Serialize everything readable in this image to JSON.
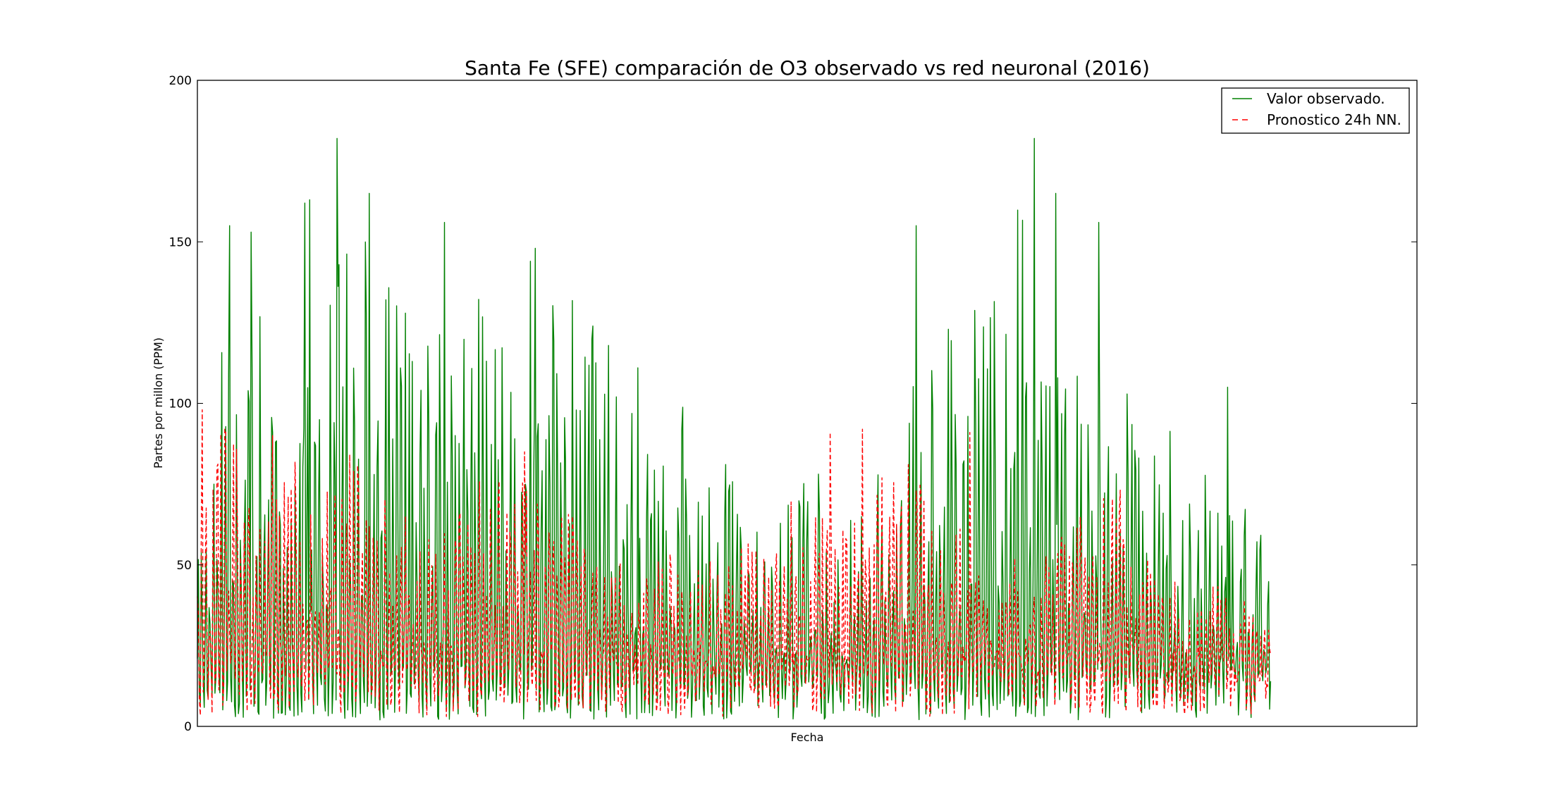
{
  "chart_data": {
    "type": "line",
    "title": "Santa Fe (SFE) comparación de O3 observado vs red neuronal (2016)",
    "xlabel": "Fecha",
    "ylabel": "Partes por millon (PPM)",
    "ylim": [
      0,
      200
    ],
    "yticks": [
      "0",
      "50",
      "100",
      "150",
      "200"
    ],
    "grid": false,
    "legend": {
      "placement": "top-right"
    },
    "x_extent_fraction": 0.88,
    "samples_per_series": 1100,
    "series": [
      {
        "name": "Valor observado.",
        "color": "#008000",
        "style": "solid",
        "baseline": 2,
        "envelope": [
          [
            0.0,
            60
          ],
          [
            0.02,
            155
          ],
          [
            0.05,
            140
          ],
          [
            0.09,
            85
          ],
          [
            0.13,
            160
          ],
          [
            0.16,
            150
          ],
          [
            0.18,
            135
          ],
          [
            0.22,
            120
          ],
          [
            0.25,
            140
          ],
          [
            0.3,
            115
          ],
          [
            0.35,
            145
          ],
          [
            0.4,
            105
          ],
          [
            0.45,
            110
          ],
          [
            0.48,
            90
          ],
          [
            0.52,
            65
          ],
          [
            0.57,
            85
          ],
          [
            0.61,
            65
          ],
          [
            0.63,
            80
          ],
          [
            0.66,
            95
          ],
          [
            0.68,
            150
          ],
          [
            0.71,
            120
          ],
          [
            0.74,
            140
          ],
          [
            0.77,
            165
          ],
          [
            0.8,
            125
          ],
          [
            0.84,
            130
          ],
          [
            0.87,
            100
          ],
          [
            0.9,
            95
          ],
          [
            0.93,
            80
          ],
          [
            0.96,
            75
          ],
          [
            1.0,
            70
          ]
        ],
        "spikes": [
          [
            0.03,
            155
          ],
          [
            0.05,
            153
          ],
          [
            0.1,
            162
          ],
          [
            0.105,
            163
          ],
          [
            0.13,
            182
          ],
          [
            0.16,
            165
          ],
          [
            0.23,
            156
          ],
          [
            0.31,
            144
          ],
          [
            0.315,
            148
          ],
          [
            0.41,
            111
          ],
          [
            0.67,
            155
          ],
          [
            0.78,
            182
          ],
          [
            0.8,
            165
          ],
          [
            0.84,
            156
          ],
          [
            0.96,
            105
          ]
        ]
      },
      {
        "name": "Pronostico 24h NN.",
        "color": "#ff0000",
        "style": "dashed",
        "baseline": 3,
        "envelope": [
          [
            0.0,
            60
          ],
          [
            0.02,
            95
          ],
          [
            0.05,
            80
          ],
          [
            0.08,
            85
          ],
          [
            0.12,
            75
          ],
          [
            0.14,
            85
          ],
          [
            0.18,
            70
          ],
          [
            0.22,
            60
          ],
          [
            0.27,
            80
          ],
          [
            0.3,
            85
          ],
          [
            0.33,
            70
          ],
          [
            0.38,
            60
          ],
          [
            0.43,
            55
          ],
          [
            0.48,
            55
          ],
          [
            0.52,
            60
          ],
          [
            0.55,
            70
          ],
          [
            0.59,
            65
          ],
          [
            0.62,
            75
          ],
          [
            0.66,
            85
          ],
          [
            0.7,
            70
          ],
          [
            0.74,
            55
          ],
          [
            0.78,
            50
          ],
          [
            0.82,
            65
          ],
          [
            0.86,
            75
          ],
          [
            0.9,
            50
          ],
          [
            0.94,
            45
          ],
          [
            1.0,
            40
          ]
        ],
        "spikes": [
          [
            0.005,
            98
          ],
          [
            0.07,
            90
          ],
          [
            0.305,
            85
          ],
          [
            0.59,
            91
          ],
          [
            0.62,
            92
          ],
          [
            0.72,
            91
          ]
        ]
      }
    ]
  }
}
